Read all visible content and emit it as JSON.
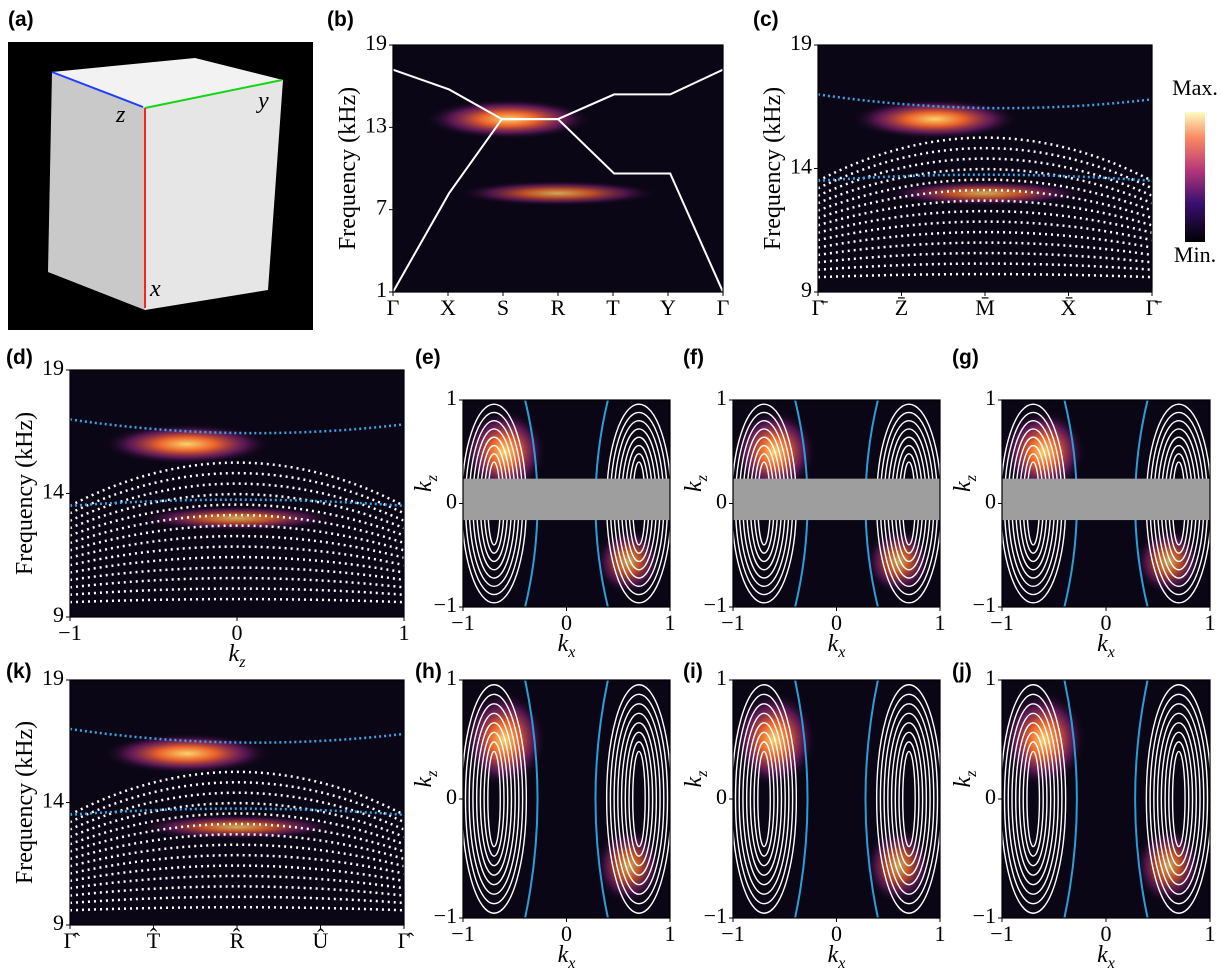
{
  "panels": [
    {
      "label": "(a)",
      "axes": {
        "z": "z",
        "y": "y",
        "x": "x"
      }
    },
    {
      "label": "(b)",
      "ylabel": "Frequency (kHz)",
      "yticks": [
        "19",
        "13",
        "7",
        "1"
      ],
      "xticks": [
        "Γ",
        "X",
        "S",
        "R",
        "T",
        "Y",
        "Γ"
      ]
    },
    {
      "label": "(c)",
      "ylabel": "Frequency (kHz)",
      "yticks": [
        "19",
        "14",
        "9"
      ],
      "xticks": [
        "Γ̄",
        "Z̄",
        "M̄",
        "X̄",
        "Γ̄"
      ]
    },
    {
      "label": "(d)",
      "ylabel": "Frequency (kHz)",
      "yticks": [
        "19",
        "14",
        "9"
      ],
      "xticks": [
        "−1",
        "0",
        "1"
      ],
      "xlabel": {
        "base": "k",
        "sub": "z"
      }
    },
    {
      "label": "(e)",
      "ylabel": {
        "base": "k",
        "sub": "z"
      },
      "yticks": [
        "1",
        "0",
        "−1"
      ],
      "xticks": [
        "−1",
        "0",
        "1"
      ],
      "xlabel": {
        "base": "k",
        "sub": "x"
      }
    },
    {
      "label": "(f)",
      "ylabel": {
        "base": "k",
        "sub": "z"
      },
      "yticks": [
        "1",
        "0",
        "−1"
      ],
      "xticks": [
        "−1",
        "0",
        "1"
      ],
      "xlabel": {
        "base": "k",
        "sub": "x"
      }
    },
    {
      "label": "(g)",
      "ylabel": {
        "base": "k",
        "sub": "z"
      },
      "yticks": [
        "1",
        "0",
        "−1"
      ],
      "xticks": [
        "−1",
        "0",
        "1"
      ],
      "xlabel": {
        "base": "k",
        "sub": "x"
      }
    },
    {
      "label": "(k)",
      "ylabel": "Frequency (kHz)",
      "yticks": [
        "19",
        "14",
        "9"
      ],
      "xticks": [
        "Γ̂",
        "T̂",
        "R̂",
        "Û",
        "Γ̂"
      ]
    },
    {
      "label": "(h)",
      "ylabel": {
        "base": "k",
        "sub": "z"
      },
      "yticks": [
        "1",
        "0",
        "−1"
      ],
      "xticks": [
        "−1",
        "0",
        "1"
      ],
      "xlabel": {
        "base": "k",
        "sub": "x"
      }
    },
    {
      "label": "(i)",
      "ylabel": {
        "base": "k",
        "sub": "z"
      },
      "yticks": [
        "1",
        "0",
        "−1"
      ],
      "xticks": [
        "−1",
        "0",
        "1"
      ],
      "xlabel": {
        "base": "k",
        "sub": "x"
      }
    },
    {
      "label": "(j)",
      "ylabel": {
        "base": "k",
        "sub": "z"
      },
      "yticks": [
        "1",
        "0",
        "−1"
      ],
      "xticks": [
        "−1",
        "0",
        "1"
      ],
      "xlabel": {
        "base": "k",
        "sub": "x"
      }
    }
  ],
  "colorbar": {
    "max": "Max.",
    "min": "Min."
  }
}
